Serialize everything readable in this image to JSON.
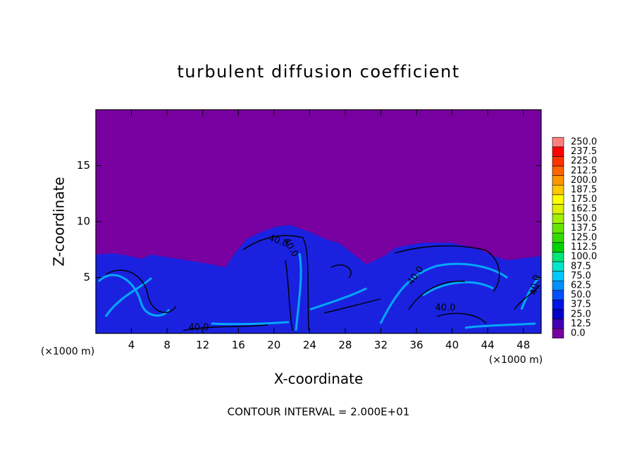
{
  "chart_data": {
    "type": "contour",
    "title": "turbulent diffusion coefficient",
    "xlabel": "X-coordinate",
    "ylabel": "Z-coordinate",
    "x_unit": "(×1000 m)",
    "y_unit": "(×1000 m)",
    "footnote": "CONTOUR INTERVAL = 2.000E+01",
    "xlim": [
      0,
      50
    ],
    "ylim": [
      0,
      20
    ],
    "xticks": [
      4,
      8,
      12,
      16,
      20,
      24,
      28,
      32,
      36,
      40,
      44,
      48
    ],
    "yticks": [
      5,
      10,
      15
    ],
    "levels": [
      {
        "value": 0,
        "label": "0.0"
      },
      12.5,
      {
        "value": 25,
        "label": "25.0"
      },
      37.5,
      {
        "value": 50,
        "label": "50.0"
      },
      62.5,
      {
        "value": 75,
        "label": "75.0"
      },
      87.5,
      {
        "value": 100,
        "label": "100.0"
      },
      112.5,
      {
        "value": 125,
        "label": "125.0"
      },
      137.5,
      {
        "value": 150,
        "label": "150.0"
      },
      162.5,
      {
        "value": 175,
        "label": "175.0"
      },
      187.5,
      {
        "value": 200,
        "label": "200.0"
      },
      212.5,
      {
        "value": 225,
        "label": "225.0"
      },
      237.5,
      {
        "value": 250,
        "label": "250.0"
      }
    ],
    "level_colors": [
      "#7800a0",
      "#4000b4",
      "#0000c8",
      "#0014e6",
      "#0050ff",
      "#0090ff",
      "#00c8ff",
      "#00e6c8",
      "#00e678",
      "#00d200",
      "#32dc00",
      "#64e600",
      "#a0f000",
      "#dcf000",
      "#ffff00",
      "#ffc800",
      "#ff9600",
      "#ff6400",
      "#ff3200",
      "#ff0000",
      "#ff8080"
    ],
    "contour_labels": [
      "40.0",
      "40.0",
      "40.0",
      "40.0",
      "40.0",
      "40.0"
    ]
  }
}
